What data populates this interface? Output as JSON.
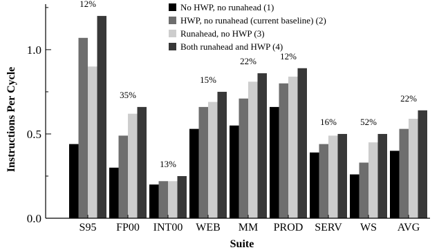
{
  "chart_data": {
    "type": "bar",
    "xlabel": "Suite",
    "ylabel": "Instructions Per Cycle",
    "ylim": [
      0,
      1.27
    ],
    "yticks": [
      {
        "value": 0.0,
        "label": "0.0"
      },
      {
        "value": 0.5,
        "label": "0.5"
      },
      {
        "value": 1.0,
        "label": "1.0"
      }
    ],
    "grid": false,
    "legend_position": "top-center",
    "categories": [
      "S95",
      "FP00",
      "INT00",
      "WEB",
      "MM",
      "PROD",
      "SERV",
      "WS",
      "AVG"
    ],
    "series": [
      {
        "name": "No HWP, no runahead (1)",
        "color": "#000000",
        "values": [
          0.44,
          0.3,
          0.2,
          0.53,
          0.55,
          0.66,
          0.39,
          0.26,
          0.4
        ]
      },
      {
        "name": "HWP, no runahead (current baseline) (2)",
        "color": "#6e6e6e",
        "values": [
          1.07,
          0.49,
          0.22,
          0.66,
          0.71,
          0.8,
          0.44,
          0.33,
          0.53
        ]
      },
      {
        "name": "Runahead, no HWP (3)",
        "color": "#cdcdcd",
        "values": [
          0.9,
          0.62,
          0.22,
          0.69,
          0.81,
          0.84,
          0.49,
          0.45,
          0.59
        ]
      },
      {
        "name": "Both runahead and HWP (4)",
        "color": "#383838",
        "values": [
          1.2,
          0.66,
          0.25,
          0.75,
          0.86,
          0.89,
          0.5,
          0.5,
          0.64
        ]
      }
    ],
    "annotations": [
      "12%",
      "35%",
      "13%",
      "15%",
      "22%",
      "12%",
      "16%",
      "52%",
      "22%"
    ]
  }
}
